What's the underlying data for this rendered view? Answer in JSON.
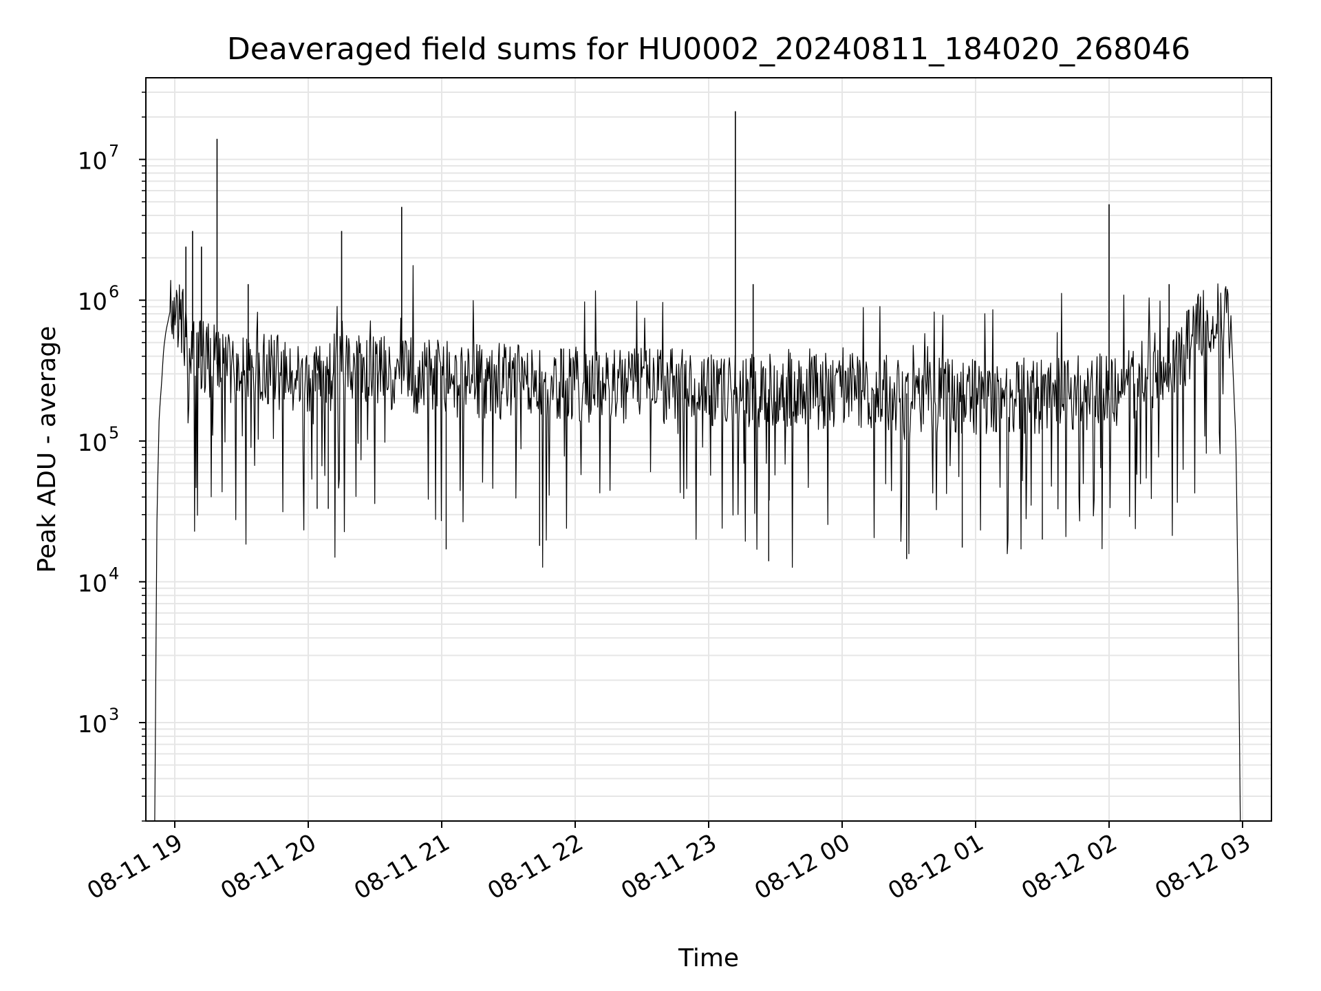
{
  "chart_data": {
    "type": "line",
    "title": "Deaveraged field sums for HU0002_20240811_184020_268046",
    "xlabel": "Time",
    "ylabel": "Peak ADU - average",
    "yscale": "log",
    "ylim": [
      200,
      38000000
    ],
    "xlim": [
      "2024-08-11 18:47",
      "2024-08-12 03:13"
    ],
    "grid": true,
    "line_color": "#000000",
    "grid_color": "#e6e6e6",
    "x_ticks": [
      {
        "value": "2024-08-11 19:00",
        "label": "08-11 19"
      },
      {
        "value": "2024-08-11 20:00",
        "label": "08-11 20"
      },
      {
        "value": "2024-08-11 21:00",
        "label": "08-11 21"
      },
      {
        "value": "2024-08-11 22:00",
        "label": "08-11 22"
      },
      {
        "value": "2024-08-11 23:00",
        "label": "08-11 23"
      },
      {
        "value": "2024-08-12 00:00",
        "label": "08-12 00"
      },
      {
        "value": "2024-08-12 01:00",
        "label": "08-12 01"
      },
      {
        "value": "2024-08-12 02:00",
        "label": "08-12 02"
      },
      {
        "value": "2024-08-12 03:00",
        "label": "08-12 03"
      }
    ],
    "y_ticks": [
      {
        "value": 1000,
        "base": "10",
        "exp": "3"
      },
      {
        "value": 10000,
        "base": "10",
        "exp": "4"
      },
      {
        "value": 100000,
        "base": "10",
        "exp": "5"
      },
      {
        "value": 1000000,
        "base": "10",
        "exp": "6"
      },
      {
        "value": 10000000,
        "base": "10",
        "exp": "7"
      }
    ],
    "series": [
      {
        "x": [
          "2024-08-11 18:51",
          "2024-08-11 18:52",
          "2024-08-11 18:53",
          "2024-08-11 18:54",
          "2024-08-11 18:55",
          "2024-08-11 18:56",
          "2024-08-11 18:58",
          "2024-08-11 19:00",
          "2024-08-11 19:03",
          "2024-08-11 19:06",
          "2024-08-11 19:10",
          "2024-08-11 19:14",
          "2024-08-11 19:19",
          "2024-08-11 19:25",
          "2024-08-11 19:30",
          "2024-08-11 19:40",
          "2024-08-11 19:50",
          "2024-08-11 20:00",
          "2024-08-11 20:15",
          "2024-08-11 20:30",
          "2024-08-11 20:45",
          "2024-08-11 21:00",
          "2024-08-11 21:20",
          "2024-08-11 21:40",
          "2024-08-11 22:00",
          "2024-08-11 22:20",
          "2024-08-11 22:40",
          "2024-08-11 23:00",
          "2024-08-11 23:20",
          "2024-08-11 23:40",
          "2024-08-12 00:00",
          "2024-08-12 00:20",
          "2024-08-12 00:40",
          "2024-08-12 01:00",
          "2024-08-12 01:20",
          "2024-08-12 01:40",
          "2024-08-12 02:00",
          "2024-08-12 02:15",
          "2024-08-12 02:30",
          "2024-08-12 02:40",
          "2024-08-12 02:47",
          "2024-08-12 02:52",
          "2024-08-12 02:55",
          "2024-08-12 02:57",
          "2024-08-12 02:58",
          "2024-08-12 02:59"
        ],
        "y": [
          200,
          30000,
          150000,
          250000,
          450000,
          600000,
          850000,
          800000,
          650000,
          500000,
          420000,
          380000,
          350000,
          330000,
          320000,
          310000,
          300000,
          300000,
          310000,
          300000,
          290000,
          280000,
          270000,
          260000,
          255000,
          250000,
          245000,
          240000,
          235000,
          230000,
          225000,
          220000,
          215000,
          210000,
          210000,
          215000,
          230000,
          280000,
          380000,
          600000,
          800000,
          850000,
          600000,
          100000,
          8000,
          200
        ]
      }
    ],
    "spikes": [
      {
        "x": "2024-08-11 19:05",
        "y": 2400000
      },
      {
        "x": "2024-08-11 19:08",
        "y": 3100000
      },
      {
        "x": "2024-08-11 19:12",
        "y": 2400000
      },
      {
        "x": "2024-08-11 19:19",
        "y": 14000000
      },
      {
        "x": "2024-08-11 19:33",
        "y": 1300000
      },
      {
        "x": "2024-08-11 20:15",
        "y": 3100000
      },
      {
        "x": "2024-08-11 20:42",
        "y": 4600000
      },
      {
        "x": "2024-08-11 23:12",
        "y": 22000000
      },
      {
        "x": "2024-08-11 23:20",
        "y": 1300000
      },
      {
        "x": "2024-08-12 02:00",
        "y": 4800000
      },
      {
        "x": "2024-08-12 02:27",
        "y": 1300000
      }
    ],
    "dips": [
      {
        "x": "2024-08-11 20:04",
        "y": 33000
      },
      {
        "x": "2024-08-11 20:09",
        "y": 33000
      },
      {
        "x": "2024-08-11 21:02",
        "y": 17000
      },
      {
        "x": "2024-08-11 21:44",
        "y": 18000
      },
      {
        "x": "2024-08-11 23:27",
        "y": 14000
      },
      {
        "x": "2024-08-12 00:29",
        "y": 14500
      },
      {
        "x": "2024-08-12 00:54",
        "y": 17500
      },
      {
        "x": "2024-08-12 01:30",
        "y": 20000
      }
    ]
  }
}
